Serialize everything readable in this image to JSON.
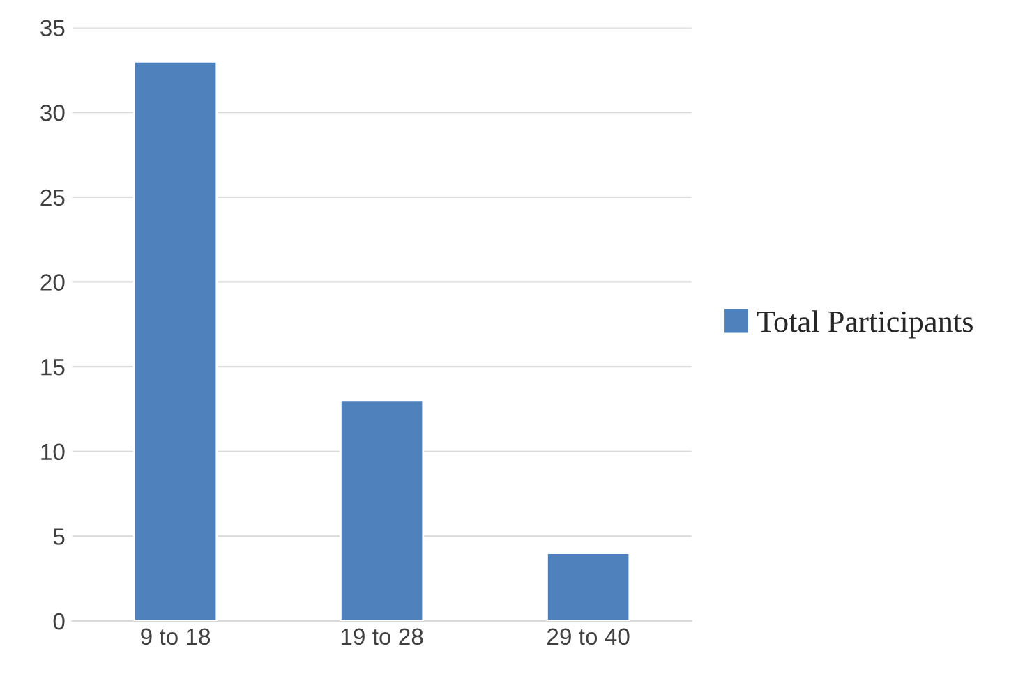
{
  "chart_data": {
    "type": "bar",
    "categories": [
      "9 to 18",
      "19 to 28",
      "29 to 40"
    ],
    "series": [
      {
        "name": "Total Participants",
        "color": "#4f81bd",
        "values": [
          33,
          13,
          4
        ]
      }
    ],
    "ylim": [
      0,
      35
    ],
    "yticks": [
      0,
      5,
      10,
      15,
      20,
      25,
      30,
      35
    ],
    "grid": "y",
    "legend": "right"
  }
}
